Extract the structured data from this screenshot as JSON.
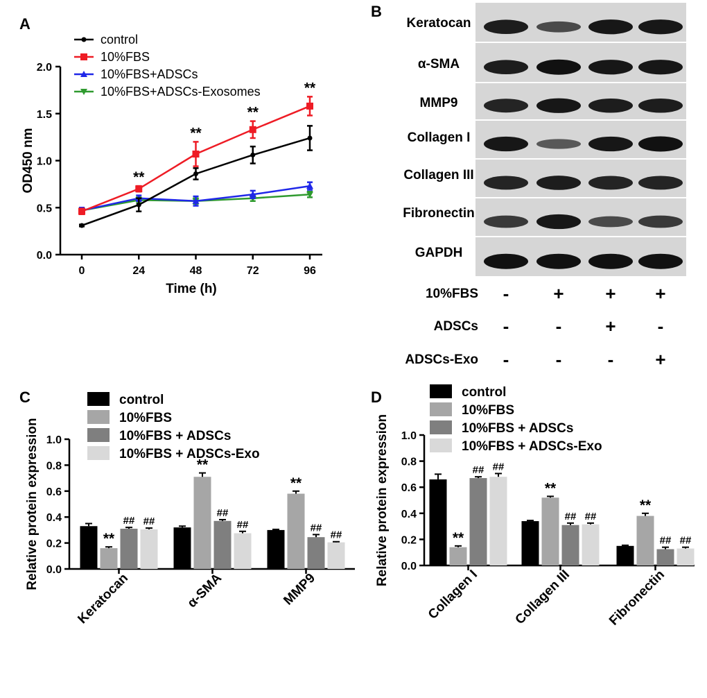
{
  "chart_data": [
    {
      "panel": "A",
      "type": "line",
      "x": [
        0,
        24,
        48,
        72,
        96
      ],
      "xlabel": "Time (h)",
      "ylabel": "OD450 nm",
      "xlim": [
        0,
        96
      ],
      "ylim": [
        0.0,
        2.0
      ],
      "xticks": [
        "0",
        "24",
        "48",
        "72",
        "96"
      ],
      "yticks": [
        "0.0",
        "0.5",
        "1.0",
        "1.5",
        "2.0"
      ],
      "legend_position": "top-left",
      "grid": false,
      "series": [
        {
          "name": "control",
          "color": "#000000",
          "marker": "dot",
          "values": [
            0.31,
            0.53,
            0.86,
            1.06,
            1.24
          ],
          "errors": [
            0.01,
            0.07,
            0.06,
            0.09,
            0.13
          ]
        },
        {
          "name": "10%FBS",
          "color": "#ee1c25",
          "marker": "square",
          "values": [
            0.46,
            0.7,
            1.07,
            1.33,
            1.58
          ],
          "errors": [
            0.03,
            0.03,
            0.13,
            0.09,
            0.1
          ]
        },
        {
          "name": "10%FBS+ADSCs",
          "color": "#1f27e8",
          "marker": "triangle-up",
          "values": [
            0.47,
            0.6,
            0.57,
            0.64,
            0.73
          ],
          "errors": [
            0.03,
            0.03,
            0.05,
            0.04,
            0.04
          ]
        },
        {
          "name": "10%FBS+ADSCs-Exosomes",
          "color": "#2f9a2f",
          "marker": "triangle-down",
          "values": [
            0.47,
            0.58,
            0.57,
            0.6,
            0.64
          ],
          "errors": [
            0.03,
            0.03,
            0.03,
            0.03,
            0.03
          ]
        }
      ],
      "annotations": [
        {
          "x": 24,
          "text": "**"
        },
        {
          "x": 48,
          "text": "**"
        },
        {
          "x": 72,
          "text": "**"
        },
        {
          "x": 96,
          "text": "**"
        }
      ]
    },
    {
      "panel": "C",
      "type": "bar",
      "categories": [
        "Keratocan",
        "α-SMA",
        "MMP9"
      ],
      "ylabel": "Relative protein expression",
      "ylim": [
        0.0,
        1.0
      ],
      "yticks": [
        "0.0",
        "0.2",
        "0.4",
        "0.6",
        "0.8",
        "1.0"
      ],
      "legend_position": "top-left",
      "series": [
        {
          "name": "control",
          "color": "#000000",
          "values": [
            0.33,
            0.32,
            0.3
          ],
          "errors": [
            0.02,
            0.01,
            0.005
          ],
          "labels": [
            "",
            "",
            ""
          ]
        },
        {
          "name": "10%FBS",
          "color": "#a6a6a6",
          "values": [
            0.16,
            0.71,
            0.58
          ],
          "errors": [
            0.01,
            0.03,
            0.02
          ],
          "labels": [
            "**",
            "**",
            "**"
          ]
        },
        {
          "name": "10%FBS + ADSCs",
          "color": "#7f7f7f",
          "values": [
            0.31,
            0.37,
            0.245
          ],
          "errors": [
            0.01,
            0.01,
            0.02
          ],
          "labels": [
            "##",
            "##",
            "##"
          ]
        },
        {
          "name": "10%FBS + ADSCs-Exo",
          "color": "#d9d9d9",
          "values": [
            0.305,
            0.275,
            0.205
          ],
          "errors": [
            0.01,
            0.015,
            0.005
          ],
          "labels": [
            "##",
            "##",
            "##"
          ]
        }
      ]
    },
    {
      "panel": "D",
      "type": "bar",
      "categories": [
        "Collagen I",
        "Collagen III",
        "Fibronectin"
      ],
      "ylabel": "Relative protein expression",
      "ylim": [
        0.0,
        1.0
      ],
      "yticks": [
        "0.0",
        "0.2",
        "0.4",
        "0.6",
        "0.8",
        "1.0"
      ],
      "legend_position": "top-left",
      "series": [
        {
          "name": "control",
          "color": "#000000",
          "values": [
            0.66,
            0.34,
            0.15
          ],
          "errors": [
            0.04,
            0.005,
            0.005
          ],
          "labels": [
            "",
            "",
            ""
          ]
        },
        {
          "name": "10%FBS",
          "color": "#a6a6a6",
          "values": [
            0.14,
            0.52,
            0.38
          ],
          "errors": [
            0.01,
            0.01,
            0.02
          ],
          "labels": [
            "**",
            "**",
            "**"
          ]
        },
        {
          "name": "10%FBS + ADSCs",
          "color": "#7f7f7f",
          "values": [
            0.67,
            0.31,
            0.125
          ],
          "errors": [
            0.01,
            0.015,
            0.015
          ],
          "labels": [
            "##",
            "##",
            "##"
          ]
        },
        {
          "name": "10%FBS + ADSCs-Exo",
          "color": "#d9d9d9",
          "values": [
            0.68,
            0.315,
            0.13
          ],
          "errors": [
            0.025,
            0.01,
            0.01
          ],
          "labels": [
            "##",
            "##",
            "##"
          ]
        }
      ]
    }
  ],
  "panels": {
    "a": "A",
    "b": "B",
    "c": "C",
    "d": "D"
  },
  "western_blot": {
    "proteins": [
      "Keratocan",
      "α-SMA",
      "MMP9",
      "Collagen I",
      "Collagen III",
      "Fibronectin",
      "GAPDH"
    ],
    "band_intensity": [
      [
        0.9,
        0.55,
        0.95,
        0.95
      ],
      [
        0.9,
        1.0,
        0.95,
        0.95
      ],
      [
        0.85,
        0.95,
        0.9,
        0.9
      ],
      [
        0.95,
        0.45,
        0.95,
        1.0
      ],
      [
        0.85,
        0.9,
        0.85,
        0.85
      ],
      [
        0.7,
        0.95,
        0.55,
        0.7
      ],
      [
        1.0,
        1.0,
        1.0,
        1.0
      ]
    ],
    "conditions": [
      {
        "name": "10%FBS",
        "signs": [
          "-",
          "+",
          "+",
          "+"
        ]
      },
      {
        "name": "ADSCs",
        "signs": [
          "-",
          "-",
          "+",
          "-"
        ]
      },
      {
        "name": "ADSCs-Exo",
        "signs": [
          "-",
          "-",
          "-",
          "+"
        ]
      }
    ]
  }
}
